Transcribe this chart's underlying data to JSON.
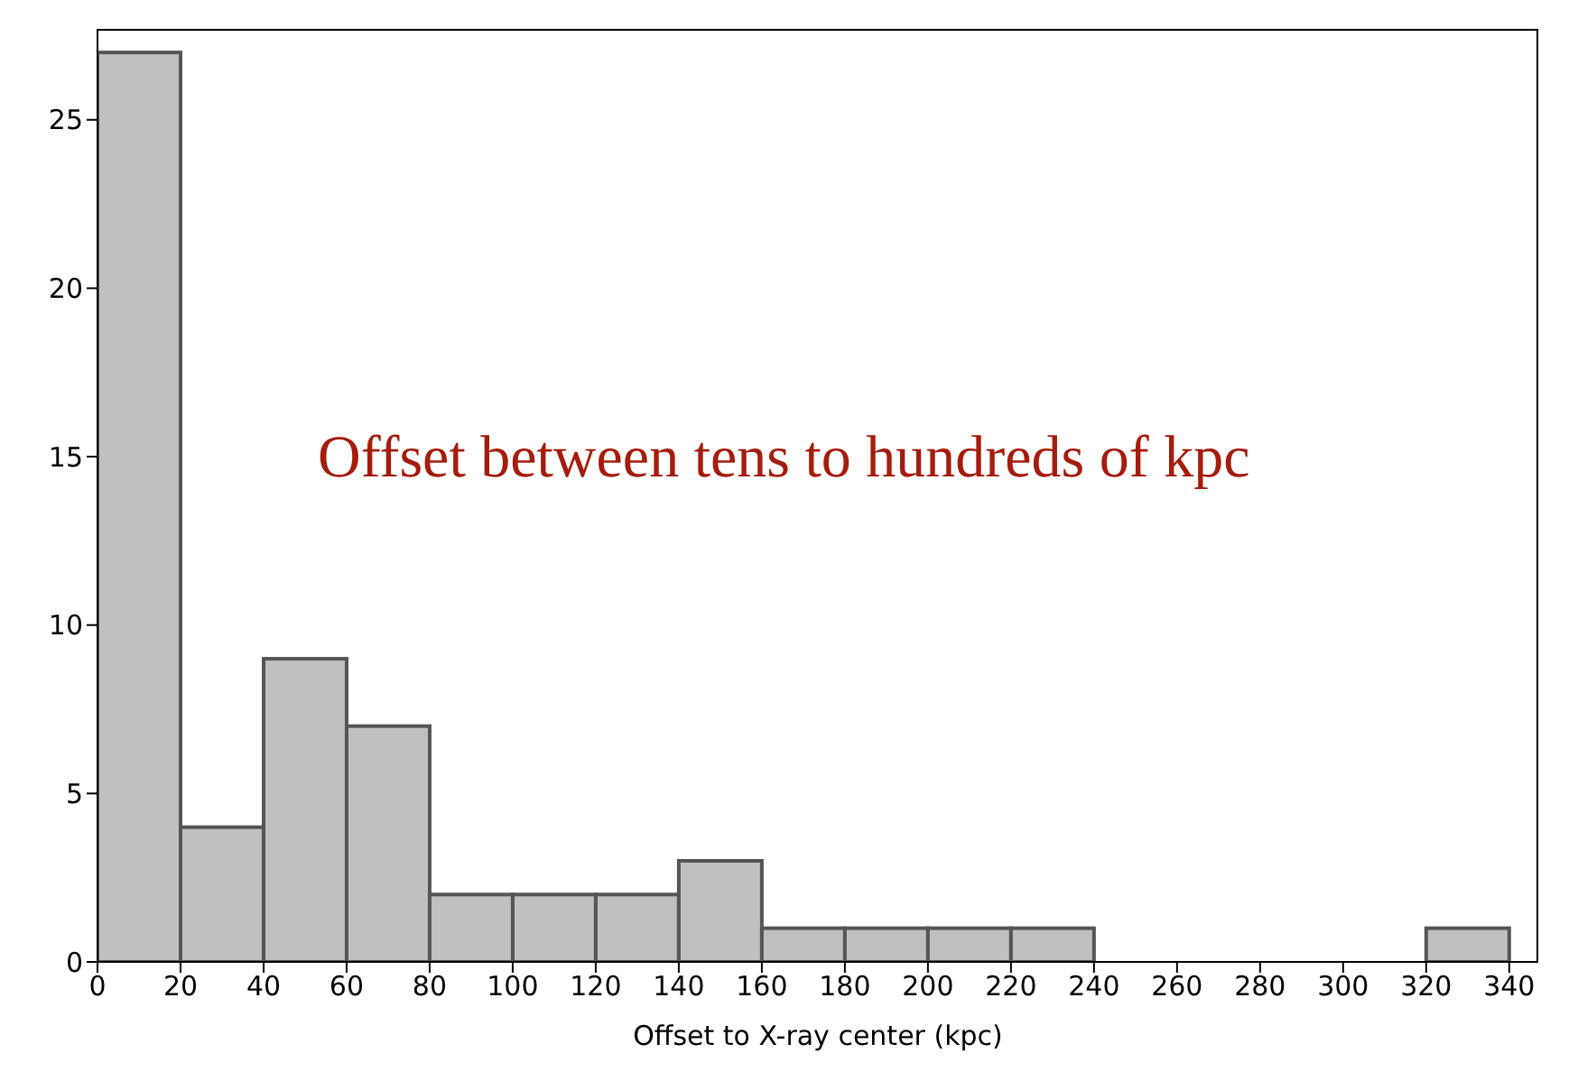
{
  "chart_data": {
    "type": "histogram",
    "xlabel": "Offset to X-ray center (kpc)",
    "annotations": [
      "Offset between tens to hundreds of kpc"
    ],
    "bins": [
      0,
      20,
      40,
      60,
      80,
      100,
      120,
      140,
      160,
      180,
      200,
      220,
      240,
      260,
      280,
      300,
      320,
      340
    ],
    "values": [
      27,
      4,
      9,
      7,
      2,
      2,
      2,
      3,
      1,
      1,
      1,
      1,
      0,
      0,
      0,
      0,
      1
    ],
    "color": "#c0c0c0",
    "xlim": [
      0,
      347
    ],
    "xticks": [
      0,
      20,
      40,
      60,
      80,
      100,
      120,
      140,
      160,
      180,
      200,
      220,
      240,
      260,
      280,
      300,
      320,
      340
    ],
    "ylim": [
      0,
      27.7
    ],
    "yticks": [
      0,
      5,
      10,
      15,
      20,
      25
    ],
    "grid": false
  }
}
